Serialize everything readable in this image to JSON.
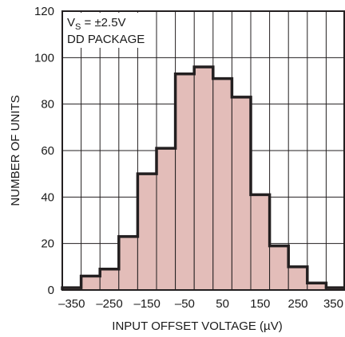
{
  "chart_data": {
    "type": "bar",
    "annotations": {
      "line1_main": "V",
      "line1_sub": "S",
      "line1_rest": " = ±2.5V",
      "line2": "DD PACKAGE"
    },
    "xlabel": "INPUT OFFSET VOLTAGE (µV)",
    "ylabel": "NUMBER OF UNITS",
    "xlim": [
      -375,
      375
    ],
    "ylim": [
      0,
      120
    ],
    "xticks": [
      -350,
      -250,
      -150,
      -50,
      50,
      150,
      250,
      350
    ],
    "xtick_labels": [
      "–350",
      "–250",
      "–150",
      "–50",
      "50",
      "150",
      "250",
      "350"
    ],
    "yticks": [
      0,
      20,
      40,
      60,
      80,
      100,
      120
    ],
    "ytick_labels": [
      "0",
      "20",
      "40",
      "60",
      "80",
      "100",
      "120"
    ],
    "bin_width": 50,
    "bin_centers": [
      -350,
      -300,
      -250,
      -200,
      -150,
      -100,
      -50,
      0,
      50,
      100,
      150,
      200,
      250,
      300,
      350
    ],
    "values": [
      1,
      6,
      9,
      23,
      50,
      61,
      93,
      96,
      91,
      83,
      41,
      19,
      10,
      3,
      1
    ],
    "grid": true,
    "colors": {
      "fill": "#e3bdb9",
      "outline": "#231f20",
      "grid": "#231f20"
    }
  }
}
